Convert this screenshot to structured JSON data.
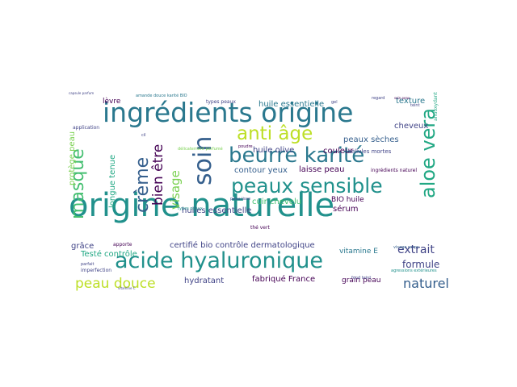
{
  "colors": {
    "background": "#ffffff",
    "palette": [
      "#2a788e",
      "#21918c",
      "#22a884",
      "#44bf70",
      "#7ad151",
      "#bddf26",
      "#fde725",
      "#414487",
      "#440154",
      "#355f8d"
    ]
  },
  "words": [
    {
      "text": "origine naturelle",
      "color": "#21918c"
    },
    {
      "text": "ingrédients origine",
      "color": "#2a788e"
    },
    {
      "text": "beurre karité",
      "color": "#2a788e"
    },
    {
      "text": "peaux sensible",
      "color": "#21918c"
    },
    {
      "text": "acide hyaluronique",
      "color": "#21918c"
    },
    {
      "text": "soin",
      "color": "#355f8d"
    },
    {
      "text": "aloe vera",
      "color": "#22a884"
    },
    {
      "text": "anti âge",
      "color": "#bddf26"
    },
    {
      "text": "masque",
      "color": "#44bf70"
    },
    {
      "text": "crème",
      "color": "#355f8d"
    },
    {
      "text": "visage",
      "color": "#7ad151"
    },
    {
      "text": "bien être",
      "color": "#440154"
    },
    {
      "text": "peau douce",
      "color": "#bddf26"
    },
    {
      "text": "naturel",
      "color": "#355f8d"
    },
    {
      "text": "extrait",
      "color": "#414487"
    },
    {
      "text": "formule",
      "color": "#414487"
    },
    {
      "text": "certifié bio contrôle dermatologique",
      "color": "#414487"
    },
    {
      "text": "fabriqué France",
      "color": "#440154"
    },
    {
      "text": "huile essentielle",
      "color": "#2a788e"
    },
    {
      "text": "huiles essentielle",
      "color": "#414487"
    },
    {
      "text": "laisse peau",
      "color": "#440154"
    },
    {
      "text": "contour yeux",
      "color": "#355f8d"
    },
    {
      "text": "couleur",
      "color": "#440154"
    },
    {
      "text": "huile olive",
      "color": "#414487"
    },
    {
      "text": "cheveux",
      "color": "#414487"
    },
    {
      "text": "texture",
      "color": "#2a788e"
    },
    {
      "text": "peaux sèches",
      "color": "#355f8d"
    },
    {
      "text": "lèvre",
      "color": "#440154"
    },
    {
      "text": "longue tenue",
      "color": "#22a884"
    },
    {
      "text": "protège peau",
      "color": "#7ad151"
    },
    {
      "text": "Testé contrôle",
      "color": "#22a884"
    },
    {
      "text": "grâce",
      "color": "#414487"
    },
    {
      "text": "cuir chevelu",
      "color": "#44bf70"
    },
    {
      "text": "sérum",
      "color": "#440154"
    },
    {
      "text": "BIO huile",
      "color": "#440154"
    },
    {
      "text": "vitamine E",
      "color": "#2a788e"
    },
    {
      "text": "hydratant",
      "color": "#414487"
    },
    {
      "text": "grain peau",
      "color": "#440154"
    },
    {
      "text": "ingrédients naturel",
      "color": "#440154"
    },
    {
      "text": "cellules mortes",
      "color": "#414487"
    },
    {
      "text": "thé vert",
      "color": "#440154"
    },
    {
      "text": "apporte",
      "color": "#440154"
    },
    {
      "text": "imperfection",
      "color": "#414487"
    },
    {
      "text": "parfait",
      "color": "#414487"
    },
    {
      "text": "application",
      "color": "#414487"
    },
    {
      "text": "types peaux",
      "color": "#414487"
    },
    {
      "text": "agressions extérieures",
      "color": "#21918c"
    },
    {
      "text": "visage corps",
      "color": "#355f8d"
    },
    {
      "text": "amande douce karité BIO",
      "color": "#2a788e"
    },
    {
      "text": "fond teint",
      "color": "#414487"
    },
    {
      "text": "regard",
      "color": "#414487"
    },
    {
      "text": "soin peau",
      "color": "#440154"
    },
    {
      "text": "antioxydant",
      "color": "#22a884"
    },
    {
      "text": "teint",
      "color": "#414487"
    },
    {
      "text": "capsule parfum",
      "color": "#414487"
    },
    {
      "text": "cil",
      "color": "#414487"
    },
    {
      "text": "poudre",
      "color": "#440154"
    },
    {
      "text": "peau lisse",
      "color": "#414487"
    },
    {
      "text": "gel",
      "color": "#414487"
    },
    {
      "text": "délicatement parfumé",
      "color": "#7ad151"
    },
    {
      "text": "vitamine C",
      "color": "#414487"
    },
    {
      "text": "types peaux",
      "color": "#21918c"
    }
  ]
}
